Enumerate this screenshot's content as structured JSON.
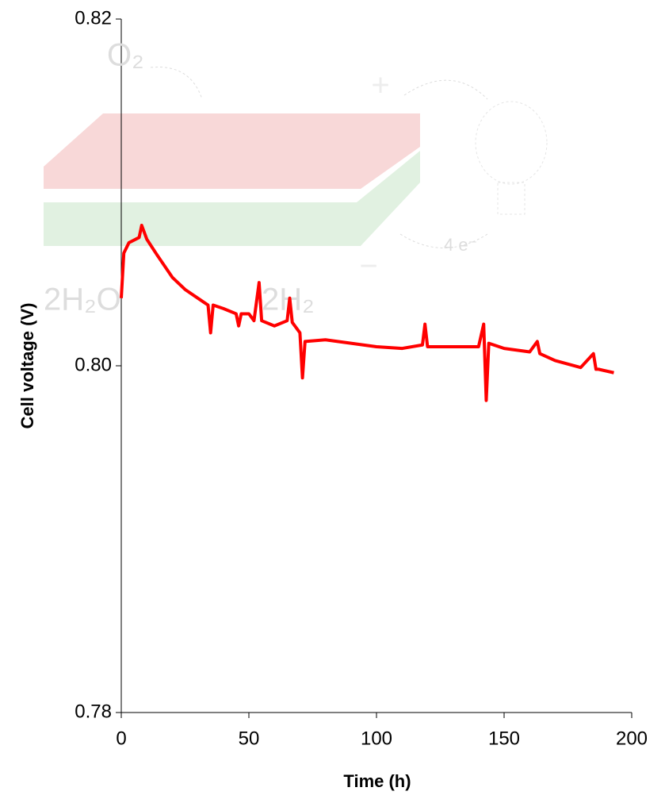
{
  "chart_data": {
    "type": "line",
    "x_label": "Time (h)",
    "y_label": "Cell voltage (V)",
    "annotations": [
      "O₂",
      "2H₂O",
      "2H₂",
      "4 e⁻"
    ],
    "x": [
      0,
      1,
      3,
      7,
      8,
      10,
      14,
      20,
      25,
      30,
      34,
      35,
      36,
      40,
      45,
      46,
      47,
      50,
      52,
      54,
      55,
      60,
      65,
      66,
      67,
      70,
      71,
      72,
      80,
      90,
      100,
      110,
      118,
      119,
      120,
      130,
      140,
      142,
      143,
      144,
      150,
      160,
      163,
      164,
      170,
      180,
      185,
      186,
      187,
      193
    ],
    "series": [
      {
        "name": "Cell voltage",
        "color": "#ff0000",
        "values": [
          0.8039,
          0.8065,
          0.8071,
          0.8074,
          0.8081,
          0.8073,
          0.8064,
          0.8051,
          0.8044,
          0.8039,
          0.8035,
          0.8019,
          0.8035,
          0.8033,
          0.803,
          0.8023,
          0.803,
          0.803,
          0.8026,
          0.8048,
          0.8026,
          0.8023,
          0.8026,
          0.8039,
          0.8025,
          0.8019,
          0.7993,
          0.8014,
          0.8015,
          0.8013,
          0.8011,
          0.801,
          0.8012,
          0.8024,
          0.8011,
          0.8011,
          0.8011,
          0.8024,
          0.798,
          0.8013,
          0.801,
          0.8008,
          0.8014,
          0.8007,
          0.8003,
          0.7999,
          0.8007,
          0.7998,
          0.7998,
          0.7996
        ]
      }
    ],
    "xlim": [
      0,
      200
    ],
    "xticks": [
      0,
      50,
      100,
      150,
      200
    ],
    "ylim": [
      0.78,
      0.82
    ],
    "yticks": [
      {
        "value": 0.78,
        "label": "0.78"
      },
      {
        "value": 0.8,
        "label": "0.80"
      },
      {
        "value": 0.82,
        "label": "0.82"
      }
    ],
    "grid": false
  }
}
